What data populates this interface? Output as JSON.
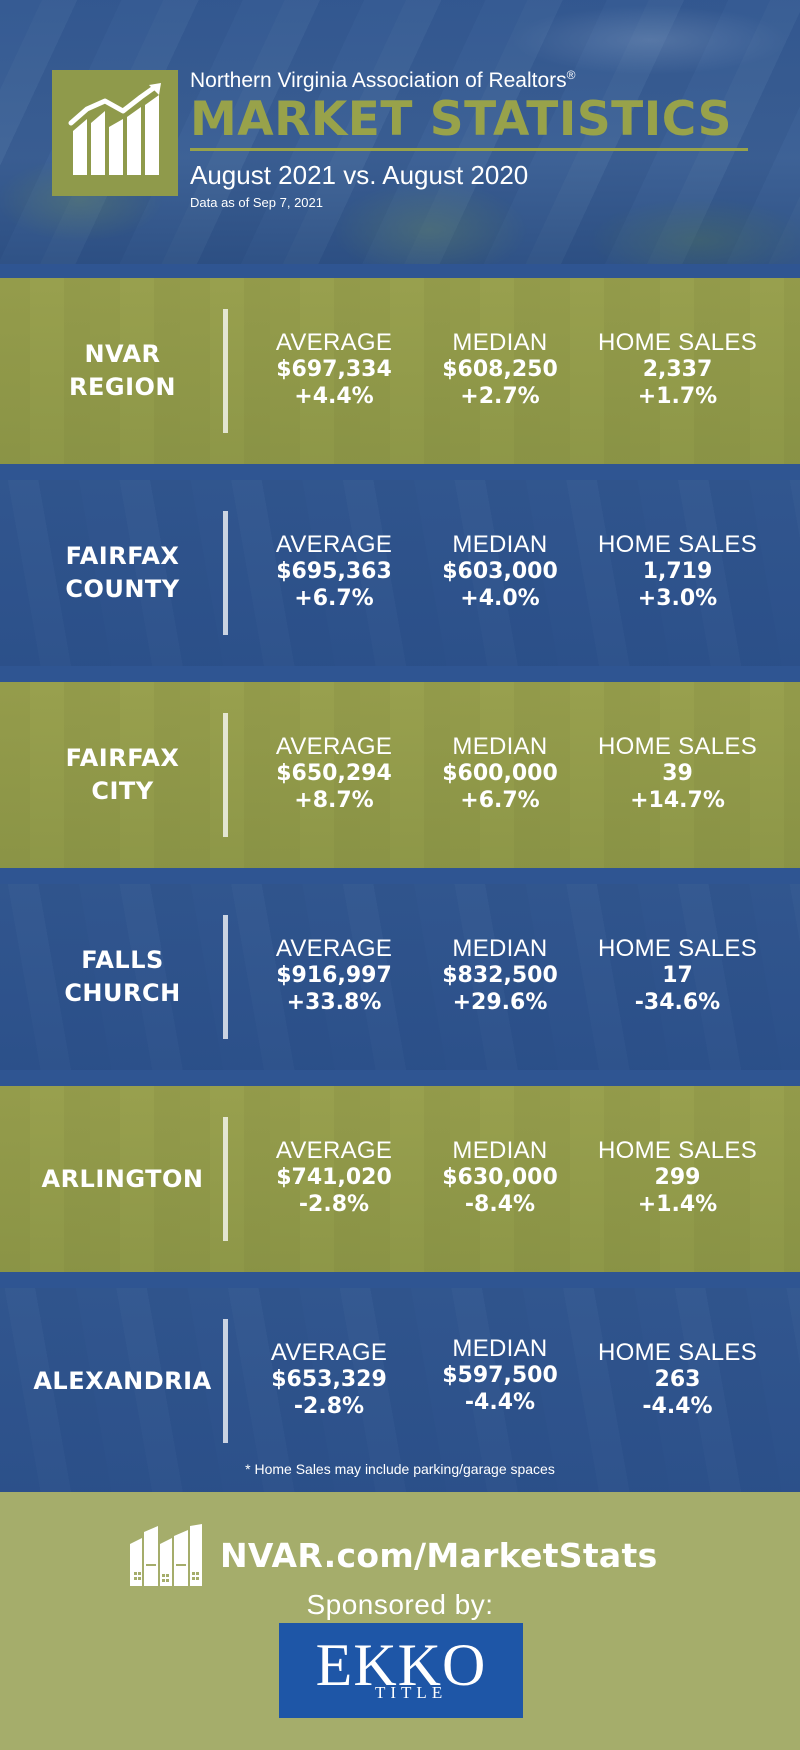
{
  "header": {
    "org_name": "Northern Virginia Association of Realtors",
    "registered_mark": "®",
    "title": "MARKET STATISTICS",
    "subtitle": "August 2021 vs. August 2020",
    "data_date": "Data as of Sep 7, 2021",
    "logo_icon": "rising-chart-houses-icon"
  },
  "stat_labels": {
    "average": "AVERAGE",
    "median": "MEDIAN",
    "home_sales": "HOME SALES"
  },
  "regions": [
    {
      "name": "NVAR\nREGION",
      "average": "$697,334",
      "average_change": "+4.4%",
      "median": "$608,250",
      "median_change": "+2.7%",
      "home_sales": "2,337",
      "home_sales_change": "+1.7%"
    },
    {
      "name": "FAIRFAX\nCOUNTY",
      "average": "$695,363",
      "average_change": "+6.7%",
      "median": "$603,000",
      "median_change": "+4.0%",
      "home_sales": "1,719",
      "home_sales_change": "+3.0%"
    },
    {
      "name": "FAIRFAX\nCITY",
      "average": "$650,294",
      "average_change": "+8.7%",
      "median": "$600,000",
      "median_change": "+6.7%",
      "home_sales": "39",
      "home_sales_change": "+14.7%"
    },
    {
      "name": "FALLS\nCHURCH",
      "average": "$916,997",
      "average_change": "+33.8%",
      "median": "$832,500",
      "median_change": "+29.6%",
      "home_sales": "17",
      "home_sales_change": "-34.6%"
    },
    {
      "name": "ARLINGTON",
      "average": "$741,020",
      "average_change": "-2.8%",
      "median": "$630,000",
      "median_change": "-8.4%",
      "home_sales": "299",
      "home_sales_change": "+1.4%"
    },
    {
      "name": "ALEXANDRIA",
      "average": "$653,329",
      "average_change": "-2.8%",
      "median": "$597,500",
      "median_change": "-4.4%",
      "home_sales": "263",
      "home_sales_change": "-4.4%"
    }
  ],
  "footnote": "* Home Sales may include parking/garage spaces",
  "footer": {
    "site_icon": "city-buildings-icon",
    "site_url": "NVAR.com/MarketStats",
    "sponsored_by": "Sponsored by:",
    "sponsor_name": "EKKO",
    "sponsor_sub": "TITLE"
  },
  "colors": {
    "blue": "#2f5592",
    "olive": "#98a24a",
    "footer_green": "#a5ad6b",
    "sponsor_blue": "#1e56a7"
  }
}
